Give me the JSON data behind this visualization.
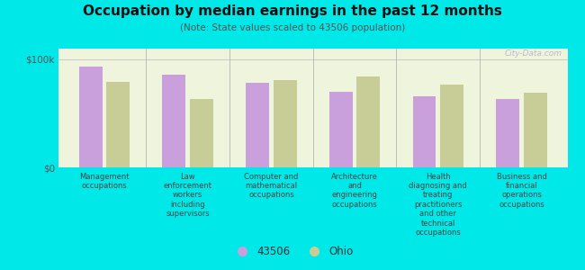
{
  "title": "Occupation by median earnings in the past 12 months",
  "subtitle": "(Note: State values scaled to 43506 population)",
  "categories": [
    "Management\noccupations",
    "Law\nenforcement\nworkers\nincluding\nsupervisors",
    "Computer and\nmathematical\noccupations",
    "Architecture\nand\nengineering\noccupations",
    "Health\ndiagnosing and\ntreating\npractitioners\nand other\ntechnical\noccupations",
    "Business and\nfinancial\noperations\noccupations"
  ],
  "values_43506": [
    93000,
    86000,
    78000,
    70000,
    66000,
    63000
  ],
  "values_ohio": [
    79000,
    63000,
    81000,
    84000,
    77000,
    69000
  ],
  "color_43506": "#c9a0dc",
  "color_ohio": "#c8cc96",
  "background_chart": "#eef5dc",
  "background_fig": "#00e8e8",
  "ylim": [
    0,
    110000
  ],
  "legend_label_1": "43506",
  "legend_label_2": "Ohio",
  "watermark": "City-Data.com"
}
